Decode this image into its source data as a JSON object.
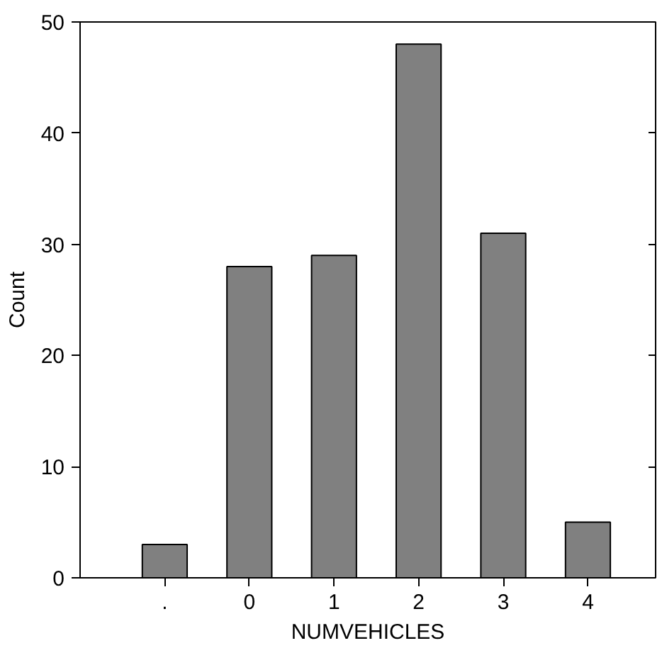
{
  "chart_data": {
    "type": "bar",
    "xlabel": "NUMVEHICLES",
    "ylabel": "Count",
    "categories": [
      ".",
      "0",
      "1",
      "2",
      "3",
      "4"
    ],
    "values": [
      3,
      28,
      29,
      48,
      31,
      5
    ],
    "color": "#808080",
    "ylim": [
      0,
      50
    ],
    "yticks": [
      0,
      10,
      20,
      30,
      40,
      50
    ],
    "grid": false
  }
}
